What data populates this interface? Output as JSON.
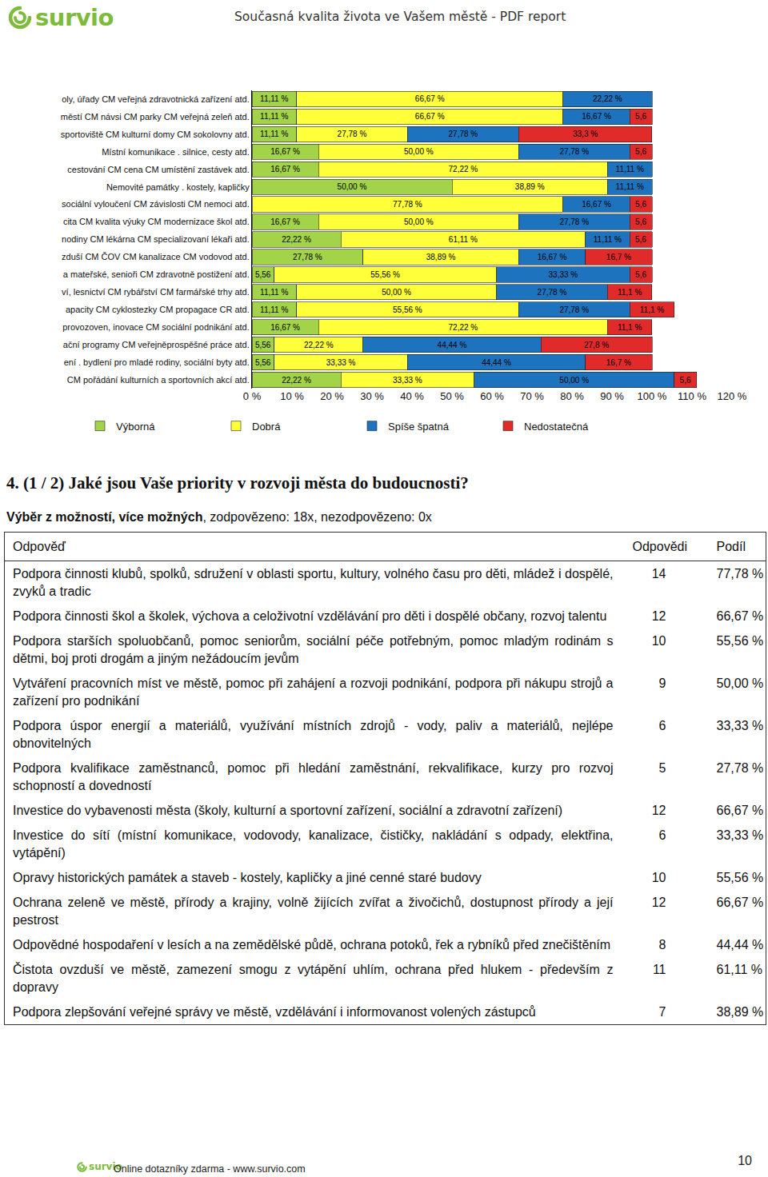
{
  "header": {
    "logo": "survio",
    "title": "Současná kvalita života ve Vašem městě - PDF report"
  },
  "chart_data": {
    "type": "bar",
    "orientation": "horizontal",
    "stacked": true,
    "data_labels": true,
    "grid": false,
    "legend": "bottom",
    "categories": [
      "oly, úřady CM veřejná zdravotnická zařízení atd.",
      "městí CM návsi CM parky CM veřejná zeleň atd.",
      "sportoviště CM kulturní domy CM sokolovny atd.",
      "Místní komunikace . silnice, cesty atd.",
      "cestování CM cena CM umístění zastávek atd.",
      "Nemovité památky . kostely, kapličky",
      "sociální vyloučení CM závislosti CM nemoci atd.",
      "cita CM kvalita výuky CM modernizace škol atd.",
      "nodiny CM lékárna CM specializovaní lékaři atd.",
      "zduší CM ČOV CM kanalizace CM vodovod atd.",
      "a mateřské, senioři CM zdravotně postižení atd.",
      "ví, lesnictví CM rybářství CM farmářské trhy atd.",
      "apacity CM cyklostezky CM propagace CR atd.",
      "provozoven, inovace CM sociální podnikání atd.",
      "ační programy CM veřejněprospěšné práce atd.",
      "ení . bydlení pro mladé rodiny, sociální byty atd.",
      "CM pořádání kulturních a sportovních akcí atd."
    ],
    "xlim": [
      0,
      120
    ],
    "xticks": [
      {
        "value": 0,
        "label": "0 %"
      },
      {
        "value": 10,
        "label": "10 %"
      },
      {
        "value": 20,
        "label": "20 %"
      },
      {
        "value": 30,
        "label": "30 %"
      },
      {
        "value": 40,
        "label": "40 %"
      },
      {
        "value": 50,
        "label": "50 %"
      },
      {
        "value": 60,
        "label": "60 %"
      },
      {
        "value": 70,
        "label": "70 %"
      },
      {
        "value": 80,
        "label": "80 %"
      },
      {
        "value": 90,
        "label": "90 %"
      },
      {
        "value": 100,
        "label": "100 %"
      },
      {
        "value": 110,
        "label": "110 %"
      },
      {
        "value": 120,
        "label": "120 %"
      }
    ],
    "series": [
      {
        "name": "Výborná",
        "color": "#a3d348",
        "values": [
          11.11,
          11.11,
          11.11,
          16.67,
          16.67,
          50.0,
          null,
          16.67,
          22.22,
          27.78,
          5.56,
          11.11,
          11.11,
          16.67,
          5.56,
          5.56,
          22.22
        ],
        "value_labels": [
          "11,11 %",
          "11,11 %",
          "11,11 %",
          "16,67 %",
          "16,67 %",
          "50,00 %",
          null,
          "16,67 %",
          "22,22 %",
          "27,78 %",
          "5,56",
          "11,11 %",
          "11,11 %",
          "16,67 %",
          "5,56",
          "5,56",
          "22,22 %"
        ]
      },
      {
        "name": "Dobrá",
        "color": "#ffff3a",
        "values": [
          66.67,
          66.67,
          27.78,
          50.0,
          72.22,
          38.89,
          77.78,
          50.0,
          61.11,
          38.89,
          55.56,
          50.0,
          55.56,
          72.22,
          22.22,
          33.33,
          33.33
        ],
        "value_labels": [
          "66,67 %",
          "66,67 %",
          "27,78 %",
          "50,00 %",
          "72,22 %",
          "38,89 %",
          "77,78 %",
          "50,00 %",
          "61,11 %",
          "38,89 %",
          "55,56 %",
          "50,00 %",
          "55,56 %",
          "72,22 %",
          "22,22 %",
          "33,33 %",
          "33,33 %"
        ]
      },
      {
        "name": "Spíše špatná",
        "color": "#1e73be",
        "values": [
          22.22,
          16.67,
          27.78,
          27.78,
          11.11,
          11.11,
          16.67,
          27.78,
          11.11,
          16.67,
          33.33,
          27.78,
          27.78,
          null,
          44.44,
          44.44,
          50.0
        ],
        "value_labels": [
          "22,22 %",
          "16,67 %",
          "27,78 %",
          "27,78 %",
          "11,11 %",
          "11,11 %",
          "16,67 %",
          "27,78 %",
          "11,11 %",
          "16,67 %",
          "33,33 %",
          "27,78 %",
          "27,78 %",
          null,
          "44,44 %",
          "44,44 %",
          "50,00 %"
        ]
      },
      {
        "name": "Nedostatečná",
        "color": "#e12b2b",
        "values": [
          null,
          5.6,
          33.3,
          5.6,
          null,
          null,
          5.6,
          5.6,
          5.6,
          16.7,
          5.6,
          11.1,
          11.1,
          11.1,
          27.8,
          16.7,
          5.6
        ],
        "value_labels": [
          null,
          "5,6",
          "33,3 %",
          "5,6",
          null,
          null,
          "5,6",
          "5,6",
          "5,6",
          "16,7 %",
          "5,6",
          "11,1 %",
          "11,1 %",
          "11,1 %",
          "27,8 %",
          "16,7 %",
          "5,6"
        ]
      }
    ]
  },
  "question": {
    "title": "4. (1 / 2) Jaké jsou Vaše priority v rozvoji města do budoucnosti?",
    "subtitle_bold": "Výběr z možností, více možných",
    "subtitle": ", zodpovězeno: 18x, nezodpovězeno: 0x"
  },
  "table": {
    "header": [
      "Odpověď",
      "Odpovědi",
      "Podíl"
    ],
    "rows": [
      [
        "Podpora činnosti klubů, spolků, sdružení v oblasti sportu, kultury, volného času pro děti, mládež i dospělé, zvyků a tradic",
        "14",
        "77,78 %"
      ],
      [
        "Podpora činnosti škol a školek, výchova a celoživotní vzdělávání pro děti i dospělé občany, rozvoj talentu",
        "12",
        "66,67 %"
      ],
      [
        "Podpora starších spoluobčanů, pomoc seniorům, sociální péče potřebným, pomoc mladým rodinám s dětmi, boj proti drogám a jiným nežádoucím jevům",
        "10",
        "55,56 %"
      ],
      [
        "Vytváření pracovních míst ve městě, pomoc při zahájení a rozvoji podnikání, podpora při nákupu strojů a zařízení pro podnikání",
        "9",
        "50,00 %"
      ],
      [
        "Podpora úspor energií a materiálů, využívání místních zdrojů - vody, paliv a materiálů, nejlépe obnovitelných",
        "6",
        "33,33 %"
      ],
      [
        "Podpora kvalifikace zaměstnanců, pomoc při hledání zaměstnání, rekvalifikace, kurzy pro rozvoj schopností a dovedností",
        "5",
        "27,78 %"
      ],
      [
        "Investice do vybavenosti města (školy, kulturní a sportovní zařízení, sociální a zdravotní zařízení)",
        "12",
        "66,67 %"
      ],
      [
        "Investice do sítí (místní komunikace, vodovody, kanalizace, čističky, nakládání s odpady, elektřina, vytápění)",
        "6",
        "33,33 %"
      ],
      [
        "Opravy historických památek a staveb - kostely, kapličky a jiné cenné staré budovy",
        "10",
        "55,56 %"
      ],
      [
        "Ochrana zeleně ve městě, přírody a krajiny, volně žijících zvířat a živočichů, dostupnost přírody a její pestrost",
        "12",
        "66,67 %"
      ],
      [
        "Odpovědné hospodaření v lesích a na zemědělské půdě, ochrana potoků, řek a rybníků před znečištěním",
        "8",
        "44,44 %"
      ],
      [
        "Čistota ovzduší ve městě, zamezení smogu z vytápění uhlím, ochrana před hlukem - především z dopravy",
        "11",
        "61,11 %"
      ],
      [
        "Podpora zlepšování veřejné správy ve městě, vzdělávání i informovanost volených zástupců",
        "7",
        "38,89 %"
      ]
    ]
  },
  "footer": {
    "logo": "survio",
    "text": "Online dotazníky zdarma - www.survio.com",
    "page": "10"
  }
}
